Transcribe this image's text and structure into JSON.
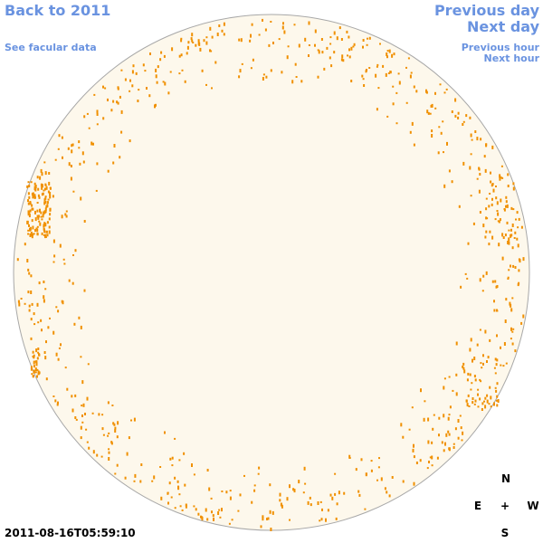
{
  "nav": {
    "back": "Back to 2011",
    "facular": "See facular data",
    "previous_day": "Previous day",
    "next_day": "Next day",
    "previous_hour": "Previous hour",
    "next_hour": "Next hour"
  },
  "timestamp": "2011-08-16T05:59:10",
  "compass": {
    "north": "N",
    "east": "E",
    "center": "+",
    "west": "W",
    "south": "S"
  }
}
